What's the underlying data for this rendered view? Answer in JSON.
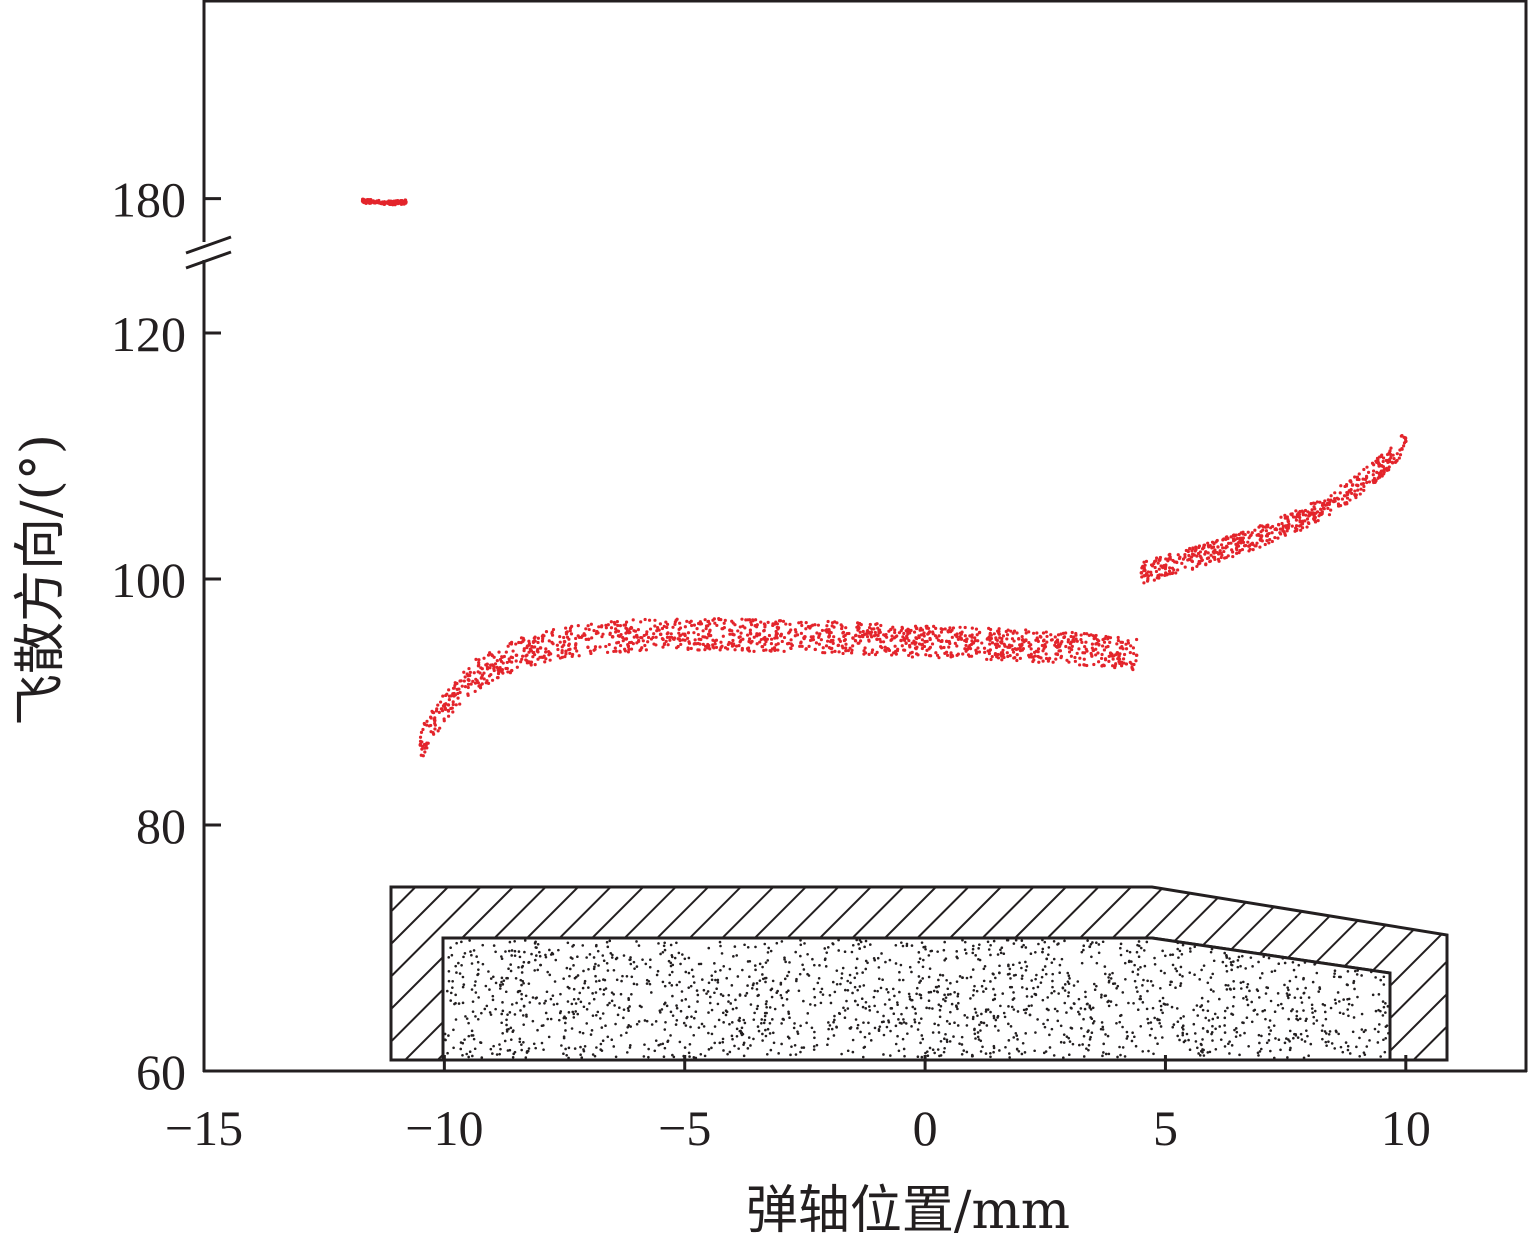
{
  "chart_data": {
    "type": "scatter",
    "xlabel": "弹轴位置/mm",
    "ylabel": "飞散方向/(°)",
    "xlim": [
      -15,
      12.5
    ],
    "x_ticks": [
      -15,
      -10,
      -5,
      0,
      5,
      10
    ],
    "x_tick_labels": [
      "−15",
      "−10",
      "−5",
      "0",
      "5",
      "10"
    ],
    "y_ticks": [
      60,
      80,
      100,
      120,
      180
    ],
    "y_tick_labels": [
      "60",
      "80",
      "100",
      "120",
      "180"
    ],
    "y_axis_break": {
      "lower_segment": [
        60,
        126
      ],
      "upper_segment": [
        164,
        190
      ]
    },
    "grid": false,
    "legend": "none",
    "point_color": "#e3242b",
    "series": [
      {
        "x": [
          -11.7,
          -11.4,
          -11.1,
          -10.8
        ],
        "y": [
          179.3,
          179.0,
          178.7,
          179.0
        ]
      },
      {
        "x": [
          -10.5,
          -10.2,
          -9.8,
          -9.5,
          -9.0,
          -8.5,
          -8.0,
          -7.5,
          -7.0,
          -6.5,
          -6.0,
          -5.5,
          -5.0,
          -4.5,
          -4.0,
          -3.5,
          -3.0,
          -2.5,
          -2.0,
          -1.5,
          -1.0,
          -0.5,
          0.0,
          0.5,
          1.0,
          1.5,
          2.0,
          2.5,
          3.0,
          3.5,
          4.0,
          4.4
        ],
        "y": [
          86.5,
          88.5,
          90.5,
          91.8,
          93.0,
          93.8,
          94.4,
          94.9,
          95.1,
          95.3,
          95.4,
          95.5,
          95.5,
          95.5,
          95.5,
          95.4,
          95.4,
          95.3,
          95.3,
          95.2,
          95.1,
          95.0,
          94.9,
          94.9,
          94.8,
          94.7,
          94.6,
          94.5,
          94.4,
          94.2,
          94.0,
          93.8
        ]
      },
      {
        "x": [
          4.5,
          5.0,
          5.5,
          6.0,
          6.5,
          7.0,
          7.5,
          8.0,
          8.5,
          9.0,
          9.5,
          10.0
        ],
        "y": [
          100.5,
          101.0,
          101.6,
          102.2,
          102.8,
          103.5,
          104.3,
          105.2,
          106.3,
          107.6,
          109.2,
          111.2
        ]
      }
    ],
    "projectile_cross_section": {
      "casing_hatch": "diagonal",
      "core_fill": "speckled",
      "x_extent": [
        -11.2,
        10.4
      ],
      "shoulder_x": 4.7
    }
  }
}
